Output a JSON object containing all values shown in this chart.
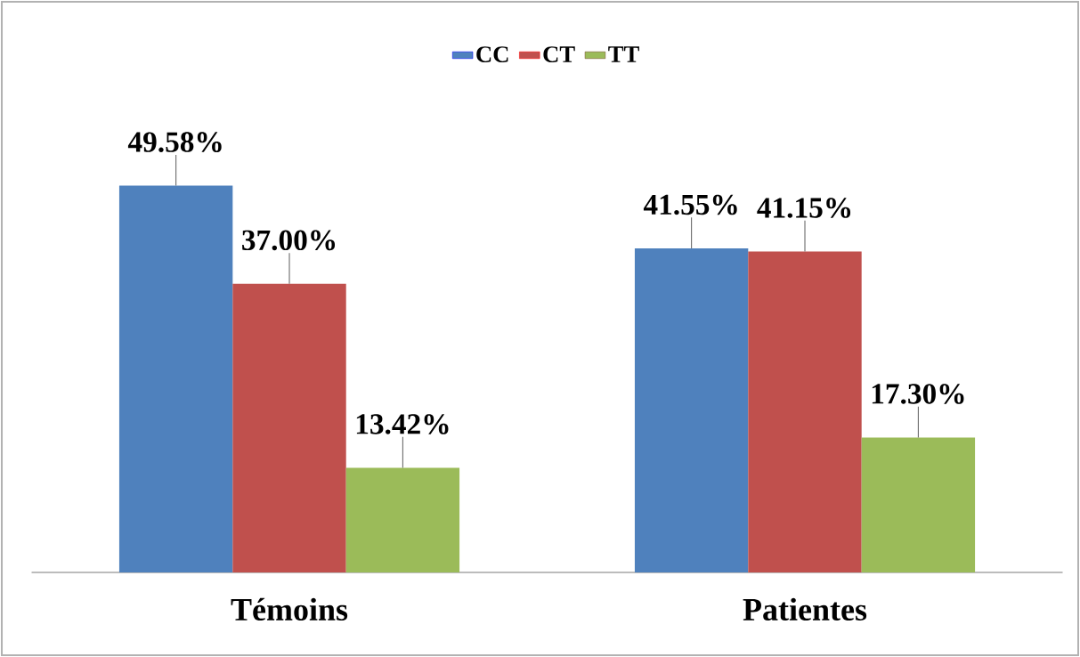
{
  "chart_data": {
    "type": "bar",
    "categories": [
      "Témoins",
      "Patientes"
    ],
    "series": [
      {
        "name": "CC",
        "color": "#4f81bd",
        "values": [
          49.58,
          41.55
        ],
        "value_labels": [
          "49.58%",
          "41.55%"
        ]
      },
      {
        "name": "CT",
        "color": "#c0504d",
        "values": [
          37.0,
          41.15
        ],
        "value_labels": [
          "37.00%",
          "41.15%"
        ]
      },
      {
        "name": "TT",
        "color": "#9bbb59",
        "values": [
          13.42,
          17.3
        ],
        "value_labels": [
          "13.42%",
          "17.30%"
        ]
      }
    ],
    "legend": "top"
  }
}
